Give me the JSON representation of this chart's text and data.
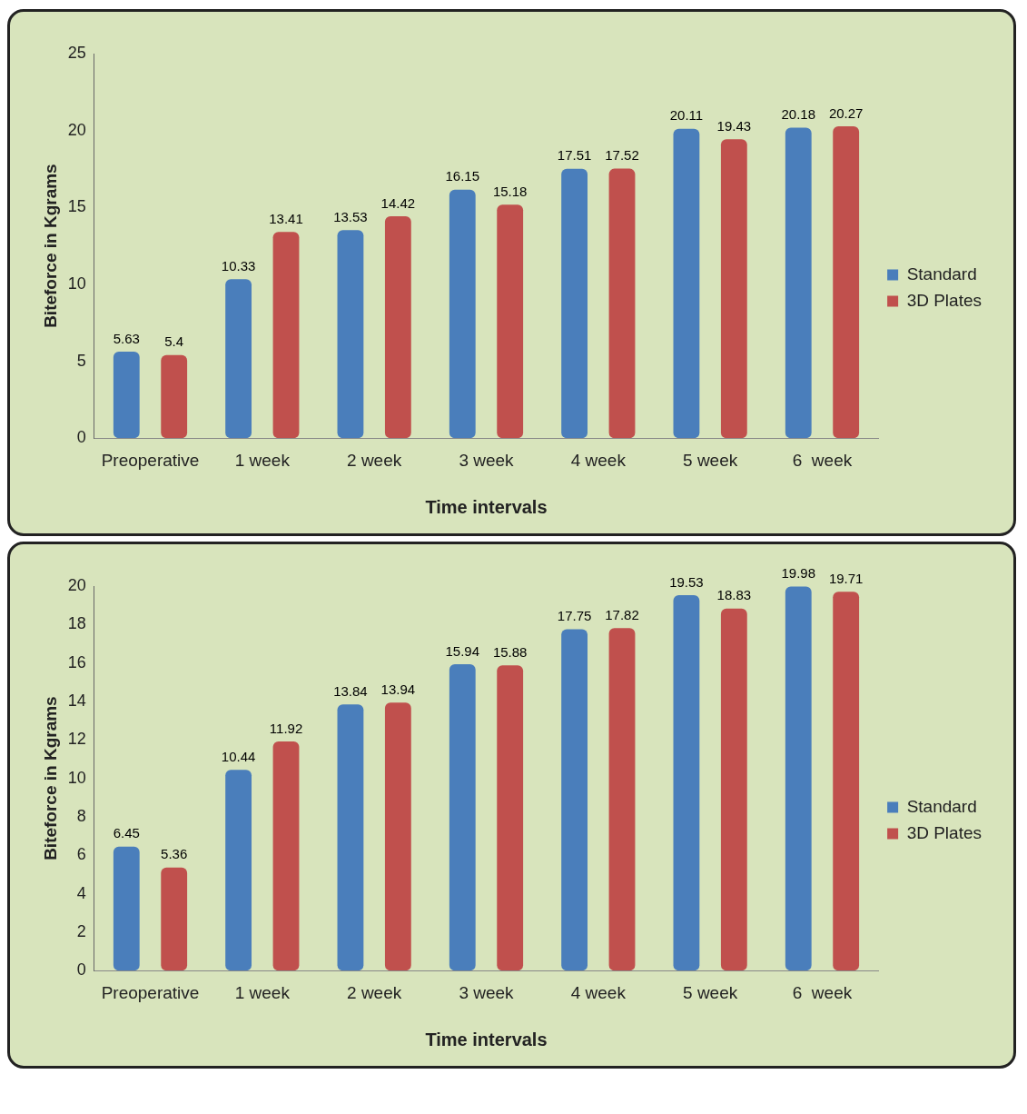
{
  "chart_data": [
    {
      "type": "bar",
      "xlabel": "Time intervals",
      "ylabel": "Biteforce in Kgrams",
      "categories": [
        "Preoperative",
        "1 week",
        "2 week",
        "3 week",
        "4 week",
        "5 week",
        "6  week"
      ],
      "series": [
        {
          "name": "Standard",
          "color": "#4a7ebb",
          "values": [
            5.63,
            10.33,
            13.53,
            16.15,
            17.51,
            20.11,
            20.18
          ]
        },
        {
          "name": "3D Plates",
          "color": "#c0504d",
          "values": [
            5.4,
            13.41,
            14.42,
            15.18,
            17.52,
            19.43,
            20.27
          ]
        }
      ],
      "ylim": [
        0,
        25
      ],
      "yticks": [
        0,
        5,
        10,
        15,
        20,
        25
      ],
      "data_labels": true,
      "legend": "right"
    },
    {
      "type": "bar",
      "xlabel": "Time intervals",
      "ylabel": "Biteforce in Kgrams",
      "categories": [
        "Preoperative",
        "1 week",
        "2 week",
        "3 week",
        "4 week",
        "5 week",
        "6  week"
      ],
      "series": [
        {
          "name": "Standard",
          "color": "#4a7ebb",
          "values": [
            6.45,
            10.44,
            13.84,
            15.94,
            17.75,
            19.53,
            19.98
          ]
        },
        {
          "name": "3D Plates",
          "color": "#c0504d",
          "values": [
            5.36,
            11.92,
            13.94,
            15.88,
            17.82,
            18.83,
            19.71
          ]
        }
      ],
      "ylim": [
        0,
        20
      ],
      "yticks": [
        0,
        2,
        4,
        6,
        8,
        10,
        12,
        14,
        16,
        18,
        20
      ],
      "data_labels": true,
      "legend": "right"
    }
  ]
}
